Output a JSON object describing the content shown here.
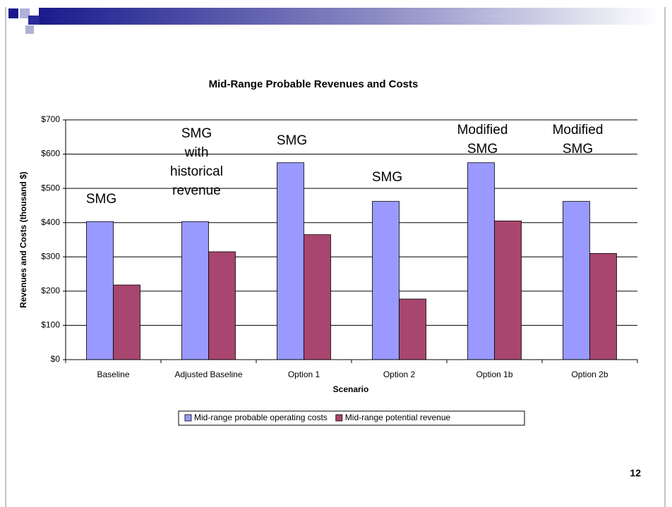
{
  "chart_data": {
    "type": "bar",
    "title": "Mid-Range Probable Revenues and Costs",
    "x_label": "Scenario",
    "y_label": "Revenues and Costs (thousand $)",
    "categories": [
      "Baseline",
      "Adjusted Baseline",
      "Option 1",
      "Option 2",
      "Option 1b",
      "Option 2b"
    ],
    "series": [
      {
        "name": "Mid-range probable operating costs",
        "color": "#9999ff",
        "values": [
          403,
          403,
          575,
          462,
          575,
          462
        ]
      },
      {
        "name": "Mid-range potential revenue",
        "color": "#a8466f",
        "values": [
          218,
          315,
          365,
          177,
          405,
          310
        ]
      }
    ],
    "annotations": [
      [
        "SMG"
      ],
      [
        "SMG",
        "with",
        "historical",
        "revenue"
      ],
      [
        "SMG"
      ],
      [
        "SMG"
      ],
      [
        "Modified",
        "SMG"
      ],
      [
        "Modified",
        "SMG"
      ]
    ],
    "ylim": [
      0,
      700
    ],
    "yticks": [
      {
        "value": 0,
        "label": "$0"
      },
      {
        "value": 100,
        "label": "$100"
      },
      {
        "value": 200,
        "label": "$200"
      },
      {
        "value": 300,
        "label": "$300"
      },
      {
        "value": 400,
        "label": "$400"
      },
      {
        "value": 500,
        "label": "$500"
      },
      {
        "value": 600,
        "label": "$600"
      },
      {
        "value": 700,
        "label": "$700"
      }
    ],
    "grid": true,
    "legend": "bottom"
  },
  "page_number": "12"
}
